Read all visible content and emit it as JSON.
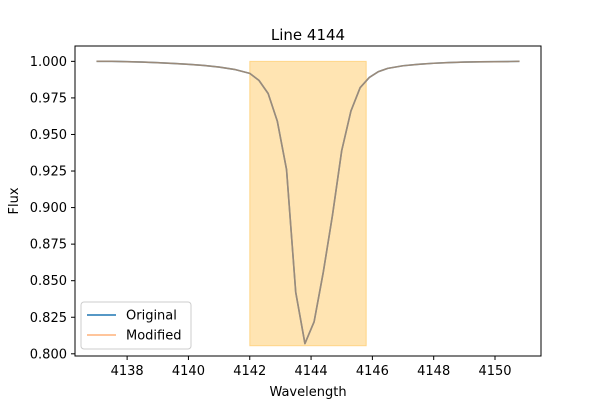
{
  "chart_data": {
    "type": "line",
    "title": "Line 4144",
    "xlabel": "Wavelength",
    "ylabel": "Flux",
    "xlim": [
      4136.3,
      4151.5
    ],
    "ylim": [
      0.7985,
      1.0105
    ],
    "xticks": [
      4138,
      4140,
      4142,
      4144,
      4146,
      4148,
      4150
    ],
    "xtick_labels": [
      "4138",
      "4140",
      "4142",
      "4144",
      "4146",
      "4148",
      "4150"
    ],
    "yticks": [
      0.8,
      0.825,
      0.85,
      0.875,
      0.9,
      0.925,
      0.95,
      0.975,
      1.0
    ],
    "ytick_labels": [
      "0.800",
      "0.825",
      "0.850",
      "0.875",
      "0.900",
      "0.925",
      "0.950",
      "0.975",
      "1.000"
    ],
    "grid": false,
    "legend_position": "bottom-left",
    "highlight_region": {
      "x": [
        4142.0,
        4145.8
      ],
      "y": [
        0.8055,
        1.0
      ],
      "color": "#ffa500",
      "opacity": 0.3
    },
    "series": [
      {
        "name": "Original",
        "color": "#1f77b4",
        "x": [
          4137.0,
          4137.5,
          4138.0,
          4138.5,
          4139.0,
          4139.5,
          4140.0,
          4140.5,
          4141.0,
          4141.5,
          4142.0,
          4142.3,
          4142.6,
          4142.9,
          4143.2,
          4143.5,
          4143.8,
          4144.1,
          4144.4,
          4144.7,
          4145.0,
          4145.3,
          4145.6,
          4145.9,
          4146.2,
          4146.5,
          4147.0,
          4147.5,
          4148.0,
          4148.5,
          4149.0,
          4149.5,
          4150.0,
          4150.5,
          4150.8
        ],
        "y": [
          1.0,
          1.0,
          0.9998,
          0.9995,
          0.9991,
          0.9986,
          0.998,
          0.9972,
          0.9961,
          0.9945,
          0.9918,
          0.987,
          0.978,
          0.959,
          0.926,
          0.842,
          0.807,
          0.822,
          0.856,
          0.895,
          0.939,
          0.966,
          0.982,
          0.989,
          0.993,
          0.9952,
          0.997,
          0.998,
          0.9987,
          0.9992,
          0.9995,
          0.9997,
          0.9998,
          0.9999,
          1.0
        ]
      },
      {
        "name": "Modified",
        "color": "#ffbb78",
        "x": [
          4137.0,
          4137.5,
          4138.0,
          4138.5,
          4139.0,
          4139.5,
          4140.0,
          4140.5,
          4141.0,
          4141.5,
          4142.0,
          4142.3,
          4142.6,
          4142.9,
          4143.2,
          4143.5,
          4143.8,
          4144.1,
          4144.4,
          4144.7,
          4145.0,
          4145.3,
          4145.6,
          4145.9,
          4146.2,
          4146.5,
          4147.0,
          4147.5,
          4148.0,
          4148.5,
          4149.0,
          4149.5,
          4150.0,
          4150.5,
          4150.8
        ],
        "y": [
          1.0,
          1.0,
          0.9998,
          0.9995,
          0.9991,
          0.9986,
          0.998,
          0.9972,
          0.9961,
          0.9945,
          0.9918,
          0.987,
          0.978,
          0.959,
          0.926,
          0.842,
          0.807,
          0.822,
          0.856,
          0.895,
          0.939,
          0.966,
          0.982,
          0.989,
          0.993,
          0.9952,
          0.997,
          0.998,
          0.9987,
          0.9992,
          0.9995,
          0.9997,
          0.9998,
          0.9999,
          1.0
        ]
      }
    ]
  }
}
